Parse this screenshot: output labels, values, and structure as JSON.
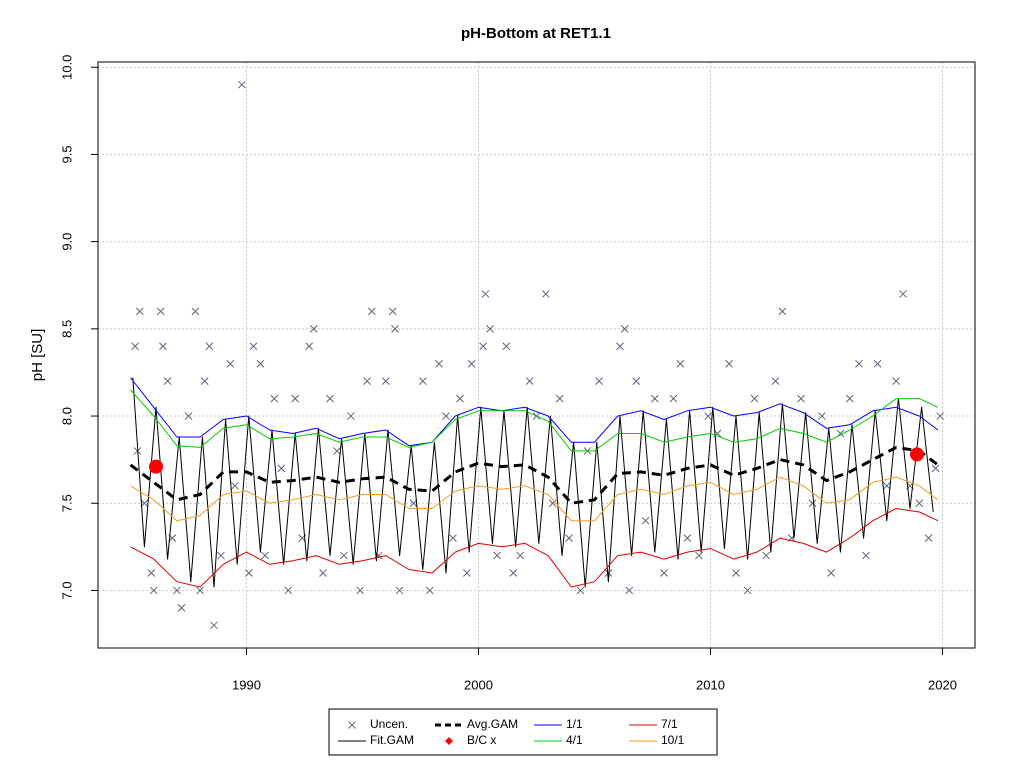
{
  "chart_data": {
    "type": "line",
    "title": "pH-Bottom at RET1.1",
    "ylabel": "pH [SU]",
    "xlim": [
      1983.6,
      2021.4
    ],
    "xticks": [
      1990,
      2000,
      2010,
      2020
    ],
    "ylim": [
      6.67,
      10.03
    ],
    "yticks": [
      {
        "value": 7,
        "label": "7.0"
      },
      {
        "value": 7.5,
        "label": "7.5"
      },
      {
        "value": 8,
        "label": "8.0"
      },
      {
        "value": 8.5,
        "label": "8.5"
      },
      {
        "value": 9,
        "label": "9.0"
      },
      {
        "value": 9.5,
        "label": "9.5"
      },
      {
        "value": 10,
        "label": "10.0"
      }
    ],
    "grid": true,
    "legend": "bottom",
    "series": [
      {
        "name": "Uncen.",
        "color": "#5a6678",
        "style": "points",
        "x": [
          1985.2,
          1985.4,
          1985.3,
          1985.6,
          1985.9,
          1986.0,
          1986.3,
          1986.4,
          1986.6,
          1986.8,
          1987.0,
          1987.2,
          1987.5,
          1987.8,
          1988.0,
          1988.2,
          1988.4,
          1988.6,
          1988.9,
          1989.3,
          1989.5,
          1989.8,
          1990.1,
          1990.3,
          1990.6,
          1990.8,
          1991.2,
          1991.5,
          1991.8,
          1992.1,
          1992.4,
          1992.7,
          1992.9,
          1993.3,
          1993.6,
          1993.9,
          1994.2,
          1994.5,
          1994.9,
          1995.2,
          1995.4,
          1995.7,
          1996.0,
          1996.3,
          1996.4,
          1996.6,
          1997.2,
          1997.6,
          1997.9,
          1998.3,
          1998.6,
          1998.9,
          1999.2,
          1999.5,
          1999.7,
          2000.2,
          2000.3,
          2000.5,
          2000.8,
          2001.2,
          2001.5,
          2001.8,
          2002.2,
          2002.5,
          2002.9,
          2003.2,
          2003.5,
          2003.9,
          2004.4,
          2004.7,
          2005.2,
          2005.6,
          2006.1,
          2006.3,
          2006.5,
          2006.8,
          2007.2,
          2007.6,
          2008.0,
          2008.4,
          2008.7,
          2009.0,
          2009.5,
          2009.9,
          2010.3,
          2010.8,
          2011.1,
          2011.6,
          2011.9,
          2012.4,
          2012.8,
          2013.1,
          2013.5,
          2013.9,
          2014.4,
          2014.8,
          2015.2,
          2015.6,
          2016.0,
          2016.4,
          2016.7,
          2017.2,
          2017.6,
          2018.0,
          2018.3,
          2018.6,
          2019.0,
          2019.4,
          2019.7,
          2019.9
        ],
        "values": [
          8.4,
          8.6,
          7.8,
          7.5,
          7.1,
          7.0,
          8.6,
          8.4,
          8.2,
          7.3,
          7.0,
          6.9,
          8.0,
          8.6,
          7.0,
          8.2,
          8.4,
          6.8,
          7.2,
          8.3,
          7.6,
          9.9,
          7.1,
          8.4,
          8.3,
          7.2,
          8.1,
          7.7,
          7.0,
          8.1,
          7.3,
          8.4,
          8.5,
          7.1,
          8.1,
          7.8,
          7.2,
          8.0,
          7.0,
          8.2,
          8.6,
          7.2,
          8.2,
          8.6,
          8.5,
          7.0,
          7.5,
          8.2,
          7.0,
          8.3,
          8.0,
          7.3,
          8.1,
          7.1,
          8.3,
          8.4,
          8.7,
          8.5,
          7.2,
          8.4,
          7.1,
          7.2,
          8.2,
          8.0,
          8.7,
          7.5,
          8.1,
          7.3,
          7.0,
          7.8,
          8.2,
          7.1,
          8.4,
          8.5,
          7.0,
          8.2,
          7.4,
          8.1,
          7.1,
          8.1,
          8.3,
          7.3,
          7.2,
          8.0,
          7.9,
          8.3,
          7.1,
          7.0,
          8.1,
          7.2,
          8.2,
          8.6,
          7.3,
          8.1,
          7.5,
          8.0,
          7.1,
          7.9,
          8.1,
          8.3,
          7.2,
          8.3,
          7.6,
          8.2,
          8.7,
          7.6,
          7.5,
          7.3,
          7.7,
          8.0
        ]
      },
      {
        "name": "Fit.GAM",
        "color": "#000000",
        "style": "line",
        "x": [
          1985.1,
          1985.6,
          1986.1,
          1986.6,
          1987.1,
          1987.6,
          1988.1,
          1988.6,
          1989.1,
          1989.6,
          1990.1,
          1990.6,
          1991.1,
          1991.6,
          1992.1,
          1992.6,
          1993.1,
          1993.6,
          1994.1,
          1994.6,
          1995.1,
          1995.6,
          1996.1,
          1996.6,
          1997.1,
          1997.6,
          1998.1,
          1998.6,
          1999.1,
          1999.6,
          2000.1,
          2000.6,
          2001.1,
          2001.6,
          2002.1,
          2002.6,
          2003.1,
          2003.6,
          2004.1,
          2004.6,
          2005.1,
          2005.6,
          2006.1,
          2006.6,
          2007.1,
          2007.6,
          2008.1,
          2008.6,
          2009.1,
          2009.6,
          2010.1,
          2010.6,
          2011.1,
          2011.6,
          2012.1,
          2012.6,
          2013.1,
          2013.6,
          2014.1,
          2014.6,
          2015.1,
          2015.6,
          2016.1,
          2016.6,
          2017.1,
          2017.6,
          2018.1,
          2018.6,
          2019.1,
          2019.6
        ],
        "values": [
          8.22,
          7.25,
          8.05,
          7.18,
          7.88,
          7.05,
          7.88,
          7.02,
          7.98,
          7.15,
          8.0,
          7.22,
          7.92,
          7.15,
          7.9,
          7.17,
          7.93,
          7.2,
          7.87,
          7.15,
          7.9,
          7.17,
          7.92,
          7.2,
          7.83,
          7.12,
          7.85,
          7.1,
          8.0,
          7.22,
          8.05,
          7.27,
          8.03,
          7.25,
          8.05,
          7.27,
          8.0,
          7.2,
          7.85,
          7.02,
          7.85,
          7.05,
          8.0,
          7.2,
          8.03,
          7.22,
          7.98,
          7.18,
          8.03,
          7.22,
          8.05,
          7.24,
          8.0,
          7.18,
          8.02,
          7.22,
          8.07,
          7.3,
          8.02,
          7.27,
          7.93,
          7.22,
          7.95,
          7.3,
          8.03,
          7.4,
          8.1,
          7.47,
          8.05,
          7.45
        ]
      },
      {
        "name": "Avg.GAM",
        "color": "#000000",
        "style": "dashed",
        "x": [
          1985,
          1986,
          1987,
          1988,
          1989,
          1990,
          1991,
          1992,
          1993,
          1994,
          1995,
          1996,
          1997,
          1998,
          1999,
          2000,
          2001,
          2002,
          2003,
          2004,
          2005,
          2006,
          2007,
          2008,
          2009,
          2010,
          2011,
          2012,
          2013,
          2014,
          2015,
          2016,
          2017,
          2018,
          2019,
          2019.8
        ],
        "values": [
          7.72,
          7.62,
          7.52,
          7.55,
          7.68,
          7.68,
          7.62,
          7.63,
          7.65,
          7.62,
          7.64,
          7.65,
          7.58,
          7.57,
          7.68,
          7.73,
          7.71,
          7.72,
          7.65,
          7.5,
          7.52,
          7.67,
          7.68,
          7.66,
          7.7,
          7.72,
          7.66,
          7.7,
          7.75,
          7.72,
          7.63,
          7.68,
          7.75,
          7.82,
          7.8,
          7.72
        ]
      },
      {
        "name": "B/C x",
        "color": "#ff0000",
        "style": "dot",
        "x": [
          1986.1,
          2018.9
        ],
        "values": [
          7.71,
          7.78
        ]
      },
      {
        "name": "1/1",
        "color": "#0000ff",
        "style": "line",
        "x": [
          1985,
          1986,
          1987,
          1988,
          1989,
          1990,
          1991,
          1992,
          1993,
          1994,
          1995,
          1996,
          1997,
          1998,
          1999,
          2000,
          2001,
          2002,
          2003,
          2004,
          2005,
          2006,
          2007,
          2008,
          2009,
          2010,
          2011,
          2012,
          2013,
          2014,
          2015,
          2016,
          2017,
          2018,
          2019,
          2019.8
        ],
        "values": [
          8.22,
          8.05,
          7.88,
          7.88,
          7.98,
          8.0,
          7.92,
          7.9,
          7.93,
          7.87,
          7.9,
          7.92,
          7.83,
          7.85,
          8.0,
          8.05,
          8.03,
          8.05,
          8.0,
          7.85,
          7.85,
          8.0,
          8.03,
          7.98,
          8.03,
          8.05,
          8.0,
          8.02,
          8.07,
          8.02,
          7.93,
          7.95,
          8.03,
          8.05,
          8.0,
          7.92
        ]
      },
      {
        "name": "4/1",
        "color": "#00cc00",
        "style": "line",
        "x": [
          1985,
          1986,
          1987,
          1988,
          1989,
          1990,
          1991,
          1992,
          1993,
          1994,
          1995,
          1996,
          1997,
          1998,
          1999,
          2000,
          2001,
          2002,
          2003,
          2004,
          2005,
          2006,
          2007,
          2008,
          2009,
          2010,
          2011,
          2012,
          2013,
          2014,
          2015,
          2016,
          2017,
          2018,
          2019,
          2019.8
        ],
        "values": [
          8.15,
          8.0,
          7.83,
          7.82,
          7.93,
          7.95,
          7.87,
          7.88,
          7.9,
          7.85,
          7.88,
          7.88,
          7.82,
          7.85,
          7.98,
          8.03,
          8.03,
          8.03,
          7.97,
          7.8,
          7.8,
          7.9,
          7.9,
          7.85,
          7.88,
          7.9,
          7.85,
          7.87,
          7.93,
          7.9,
          7.85,
          7.92,
          8.0,
          8.1,
          8.1,
          8.05
        ]
      },
      {
        "name": "7/1",
        "color": "#dd0000",
        "style": "line",
        "x": [
          1985,
          1986,
          1987,
          1988,
          1989,
          1990,
          1991,
          1992,
          1993,
          1994,
          1995,
          1996,
          1997,
          1998,
          1999,
          2000,
          2001,
          2002,
          2003,
          2004,
          2005,
          2006,
          2007,
          2008,
          2009,
          2010,
          2011,
          2012,
          2013,
          2014,
          2015,
          2016,
          2017,
          2018,
          2019,
          2019.8
        ],
        "values": [
          7.25,
          7.18,
          7.05,
          7.02,
          7.15,
          7.22,
          7.15,
          7.17,
          7.2,
          7.15,
          7.17,
          7.2,
          7.12,
          7.1,
          7.22,
          7.27,
          7.25,
          7.27,
          7.2,
          7.02,
          7.05,
          7.2,
          7.22,
          7.18,
          7.22,
          7.24,
          7.18,
          7.22,
          7.3,
          7.27,
          7.22,
          7.3,
          7.4,
          7.47,
          7.45,
          7.4
        ]
      },
      {
        "name": "10/1",
        "color": "#f0a020",
        "style": "line",
        "x": [
          1985,
          1986,
          1987,
          1988,
          1989,
          1990,
          1991,
          1992,
          1993,
          1994,
          1995,
          1996,
          1997,
          1998,
          1999,
          2000,
          2001,
          2002,
          2003,
          2004,
          2005,
          2006,
          2007,
          2008,
          2009,
          2010,
          2011,
          2012,
          2013,
          2014,
          2015,
          2016,
          2017,
          2018,
          2019,
          2019.8
        ],
        "values": [
          7.6,
          7.52,
          7.4,
          7.43,
          7.55,
          7.57,
          7.5,
          7.52,
          7.55,
          7.52,
          7.55,
          7.55,
          7.47,
          7.47,
          7.57,
          7.6,
          7.58,
          7.6,
          7.55,
          7.4,
          7.4,
          7.55,
          7.58,
          7.55,
          7.6,
          7.62,
          7.55,
          7.58,
          7.65,
          7.6,
          7.5,
          7.52,
          7.62,
          7.65,
          7.6,
          7.52
        ]
      }
    ]
  }
}
